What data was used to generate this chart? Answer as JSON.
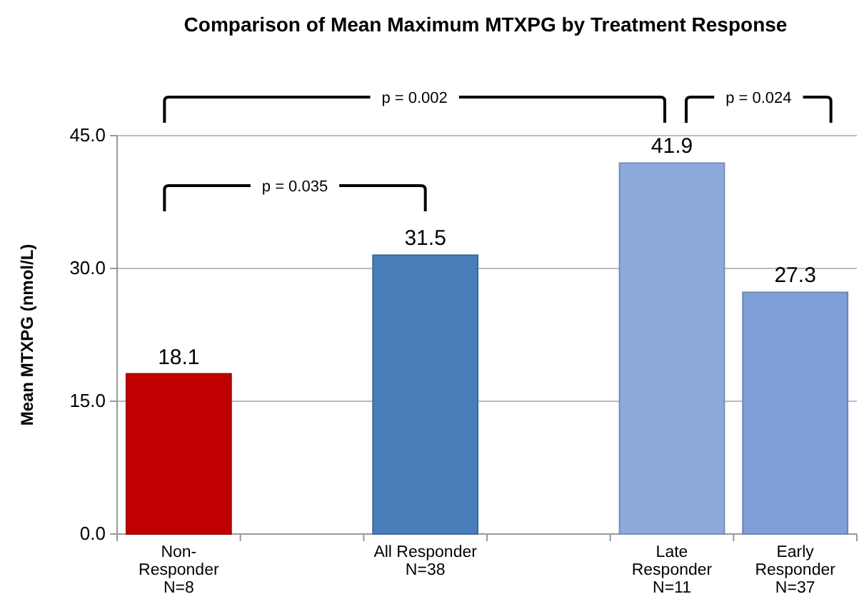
{
  "chart_data": {
    "type": "bar",
    "title": "Comparison of Mean Maximum MTXPG by Treatment Response",
    "ylabel": "Mean MTXPG (nmol/L)",
    "categories": [
      "Non-\nResponder\nN=8",
      null,
      "All Responder\nN=38",
      null,
      "Late\nResponder\nN=11",
      "Early\nResponder\nN=37"
    ],
    "values": [
      18.1,
      null,
      31.5,
      null,
      41.9,
      27.3
    ],
    "colors": [
      "#c00000",
      null,
      "#4a7ebb",
      null,
      "#8eaadb",
      "#7f9fd6"
    ],
    "ylim": [
      0,
      45
    ],
    "yticks": [
      {
        "value": 0,
        "label": "0.0"
      },
      {
        "value": 15,
        "label": "15.0"
      },
      {
        "value": 30,
        "label": "30.0"
      },
      {
        "value": 45,
        "label": "45.0"
      }
    ],
    "grid": "y",
    "data_labels": true,
    "annotations": [
      "p = 0.002",
      "p = 0.024",
      "p = 0.035"
    ]
  }
}
